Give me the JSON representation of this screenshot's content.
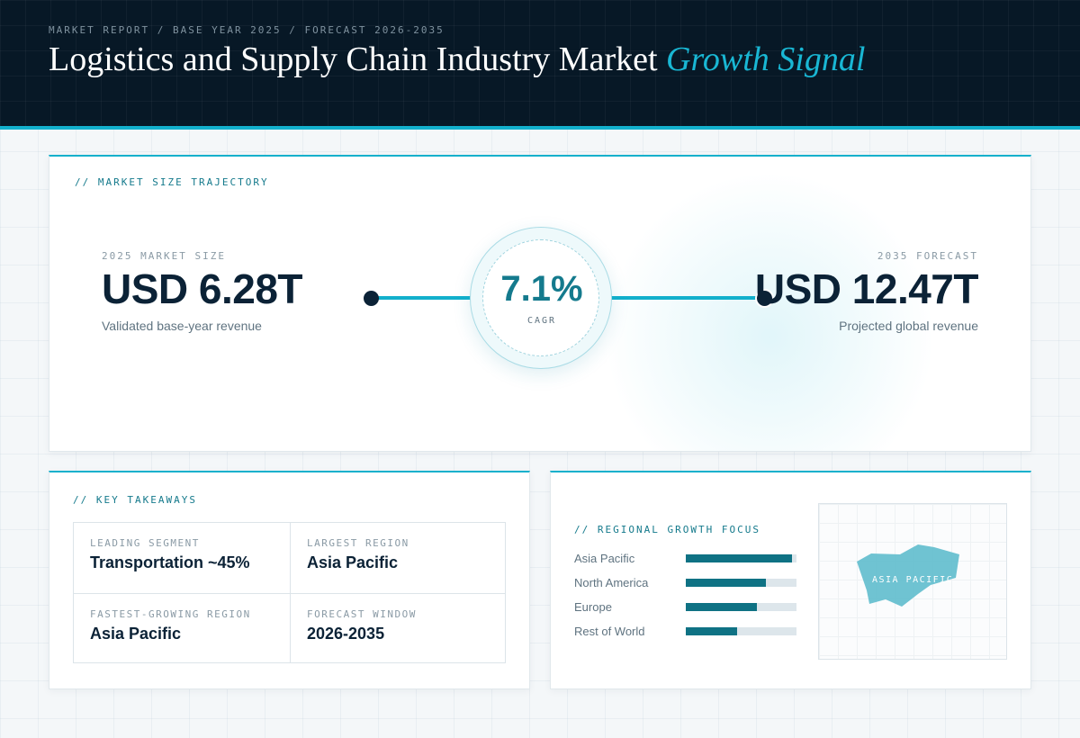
{
  "header": {
    "eyebrow": "MARKET REPORT / BASE YEAR 2025 / FORECAST 2026-2035",
    "title": "Logistics and Supply Chain Industry Market",
    "title_accent": "Growth Signal"
  },
  "trajectory": {
    "label": "// MARKET SIZE TRAJECTORY",
    "base": {
      "kicker": "2025 MARKET SIZE",
      "value": "USD 6.28T",
      "caption": "Validated base-year revenue"
    },
    "forecast": {
      "kicker": "2035 FORECAST",
      "value": "USD 12.47T",
      "caption": "Projected global revenue"
    },
    "cagr": {
      "value": "7.1%",
      "label": "CAGR"
    }
  },
  "takeaways": {
    "label": "// KEY TAKEAWAYS",
    "items": [
      {
        "key": "LEADING SEGMENT",
        "value": "Transportation ~45%"
      },
      {
        "key": "LARGEST REGION",
        "value": "Asia Pacific"
      },
      {
        "key": "FASTEST-GROWING REGION",
        "value": "Asia Pacific"
      },
      {
        "key": "FORECAST WINDOW",
        "value": "2026-2035"
      }
    ]
  },
  "regional": {
    "label": "// REGIONAL GROWTH FOCUS",
    "rows": [
      {
        "name": "Asia Pacific",
        "share": 0.96
      },
      {
        "name": "North America",
        "share": 0.72
      },
      {
        "name": "Europe",
        "share": 0.64
      },
      {
        "name": "Rest of World",
        "share": 0.46
      }
    ],
    "map_label": "ASIA PACIFIC"
  },
  "colors": {
    "accent": "#12b0cc",
    "navy": "#071826",
    "bar": "#0f7284"
  }
}
